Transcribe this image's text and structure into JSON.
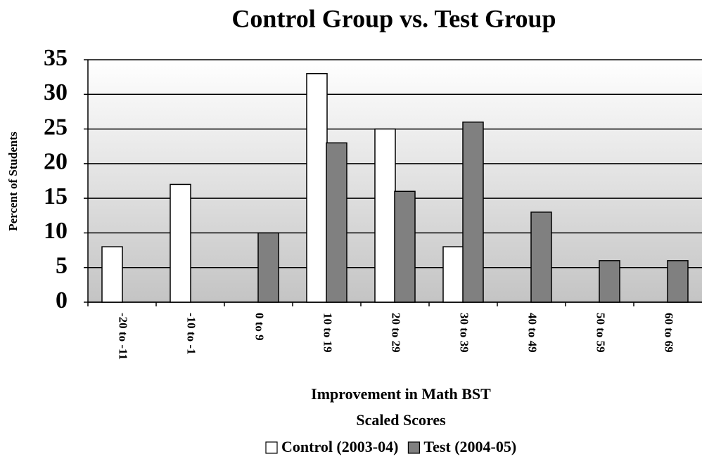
{
  "chart_data": {
    "type": "bar",
    "title": "Control Group vs. Test Group",
    "ylabel": "Percent of Students",
    "xlabel": [
      "Improvement in Math BST",
      "Scaled Scores"
    ],
    "categories": [
      "-20 to -11",
      "-10 to -1",
      "0 to 9",
      "10 to 19",
      "20 to 29",
      "30 to 39",
      "40 to 49",
      "50 to 59",
      "60 to 69"
    ],
    "series": [
      {
        "name": "Control (2003-04)",
        "color": "#ffffff",
        "values": [
          8,
          17,
          0,
          33,
          25,
          8,
          0,
          0,
          0
        ]
      },
      {
        "name": "Test (2004-05)",
        "color": "#808080",
        "values": [
          0,
          0,
          10,
          23,
          16,
          26,
          13,
          6,
          6
        ]
      }
    ],
    "ylim": [
      0,
      35
    ],
    "yticks": [
      0,
      5,
      10,
      15,
      20,
      25,
      30,
      35
    ],
    "grid": true,
    "legend": "bottom"
  }
}
